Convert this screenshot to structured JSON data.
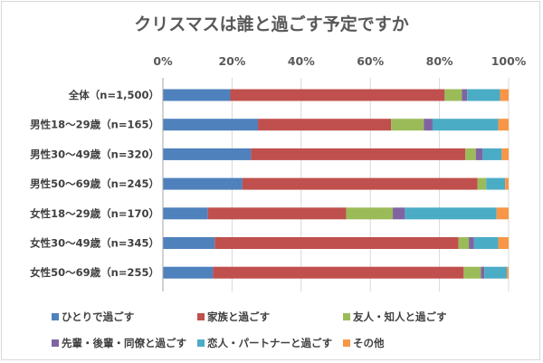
{
  "chart_data": {
    "type": "bar",
    "orientation": "horizontal",
    "stacked": "percent",
    "title": "クリスマスは誰と過ごす予定ですか",
    "xlim": [
      0,
      100
    ],
    "x_ticks": [
      "0%",
      "20%",
      "40%",
      "60%",
      "80%",
      "100%"
    ],
    "grid": true,
    "legend_position": "bottom",
    "categories": [
      "全体（n=1,500）",
      "男性18～29歳（n=165）",
      "男性30～49歳（n=320）",
      "男性50～69歳（n=245）",
      "女性18～29歳（n=170）",
      "女性30～49歳（n=345）",
      "女性50～69歳（n=255）"
    ],
    "series": [
      {
        "name": "ひとりで過ごす",
        "color": "#4f81bd",
        "values": [
          19.5,
          27.5,
          25.5,
          23.0,
          13.0,
          15.0,
          14.5
        ]
      },
      {
        "name": "家族と過ごす",
        "color": "#c0504d",
        "values": [
          62.0,
          38.5,
          62.0,
          68.0,
          40.0,
          70.5,
          72.5
        ]
      },
      {
        "name": "友人・知人と過ごす",
        "color": "#9bbb59",
        "values": [
          5.0,
          9.5,
          3.0,
          2.5,
          13.5,
          3.0,
          5.0
        ]
      },
      {
        "name": "先輩・後輩・同僚と過ごす",
        "color": "#8064a2",
        "values": [
          1.5,
          2.5,
          2.0,
          0.0,
          3.5,
          1.5,
          1.0
        ]
      },
      {
        "name": "恋人・パートナーと過ごす",
        "color": "#4bacc6",
        "values": [
          9.5,
          19.0,
          5.5,
          5.5,
          26.5,
          7.0,
          6.5
        ]
      },
      {
        "name": "その他",
        "color": "#f79646",
        "values": [
          2.5,
          3.0,
          2.0,
          1.0,
          3.5,
          3.0,
          0.5
        ]
      }
    ]
  }
}
